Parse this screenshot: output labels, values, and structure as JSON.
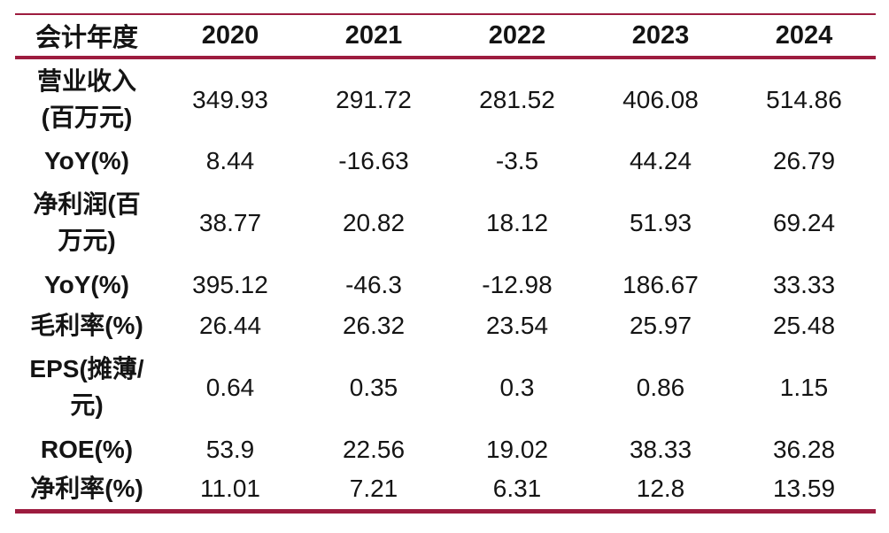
{
  "colors": {
    "rule": "#9D1C3F",
    "text": "#141414",
    "bg": "#FFFFFF"
  },
  "table": {
    "header": [
      "会计年度",
      "2020",
      "2021",
      "2022",
      "2023",
      "2024"
    ],
    "rows": [
      {
        "label": "营业收入\n(百万元)",
        "values": [
          "349.93",
          "291.72",
          "281.52",
          "406.08",
          "514.86"
        ]
      },
      {
        "label": "YoY(%)",
        "values": [
          "8.44",
          "-16.63",
          "-3.5",
          "44.24",
          "26.79"
        ]
      },
      {
        "label": "净利润(百\n万元)",
        "values": [
          "38.77",
          "20.82",
          "18.12",
          "51.93",
          "69.24"
        ]
      },
      {
        "label": "YoY(%)",
        "values": [
          "395.12",
          "-46.3",
          "-12.98",
          "186.67",
          "33.33"
        ]
      },
      {
        "label": "毛利率(%)",
        "values": [
          "26.44",
          "26.32",
          "23.54",
          "25.97",
          "25.48"
        ]
      },
      {
        "label": "EPS(摊薄/\n元)",
        "values": [
          "0.64",
          "0.35",
          "0.3",
          "0.86",
          "1.15"
        ]
      },
      {
        "label": "ROE(%)",
        "values": [
          "53.9",
          "22.56",
          "19.02",
          "38.33",
          "36.28"
        ]
      },
      {
        "label": "净利率(%)",
        "values": [
          "11.01",
          "7.21",
          "6.31",
          "12.8",
          "13.59"
        ]
      }
    ]
  },
  "chart_data": {
    "type": "table",
    "title": "",
    "columns": [
      "会计年度",
      "2020",
      "2021",
      "2022",
      "2023",
      "2024"
    ],
    "rows": [
      [
        "营业收入(百万元)",
        349.93,
        291.72,
        281.52,
        406.08,
        514.86
      ],
      [
        "YoY(%)",
        8.44,
        -16.63,
        -3.5,
        44.24,
        26.79
      ],
      [
        "净利润(百万元)",
        38.77,
        20.82,
        18.12,
        51.93,
        69.24
      ],
      [
        "YoY(%)",
        395.12,
        -46.3,
        -12.98,
        186.67,
        33.33
      ],
      [
        "毛利率(%)",
        26.44,
        26.32,
        23.54,
        25.97,
        25.48
      ],
      [
        "EPS(摊薄/元)",
        0.64,
        0.35,
        0.3,
        0.86,
        1.15
      ],
      [
        "ROE(%)",
        53.9,
        22.56,
        19.02,
        38.33,
        36.28
      ],
      [
        "净利率(%)",
        11.01,
        7.21,
        6.31,
        12.8,
        13.59
      ]
    ],
    "layout": {
      "rule_color": "#9D1C3F",
      "header_bold": true,
      "label_column_bold": true,
      "grid": "horizontal-rules-only"
    }
  }
}
